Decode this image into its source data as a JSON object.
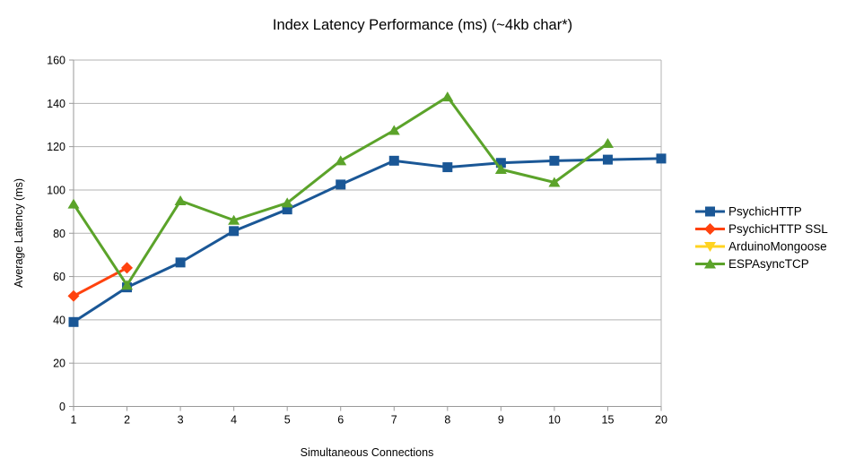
{
  "title": "Index Latency Performance (ms) (~4kb char*)",
  "chart_data": {
    "type": "line",
    "title": "Index Latency Performance (ms) (~4kb char*)",
    "xlabel": "Simultaneous Connections",
    "ylabel": "Average Latency (ms)",
    "categories": [
      "1",
      "2",
      "3",
      "4",
      "5",
      "6",
      "7",
      "8",
      "9",
      "10",
      "15",
      "20"
    ],
    "ylim": [
      0,
      160
    ],
    "ytick_step": 20,
    "grid": "horizontal",
    "legend_position": "right",
    "series": [
      {
        "name": "PsychicHTTP",
        "color": "#1a5796",
        "marker": "square",
        "values": [
          39,
          55,
          66.5,
          81,
          91,
          102.5,
          113.5,
          110.5,
          112.5,
          113.5,
          114,
          114.5
        ]
      },
      {
        "name": "PsychicHTTP SSL",
        "color": "#ff420e",
        "marker": "diamond",
        "values": [
          51,
          64,
          null,
          null,
          null,
          null,
          null,
          null,
          null,
          null,
          null,
          null
        ]
      },
      {
        "name": "ArduinoMongoose",
        "color": "#ffd320",
        "marker": "triangle-down",
        "values": [
          null,
          null,
          null,
          null,
          null,
          null,
          null,
          null,
          null,
          null,
          null,
          null
        ]
      },
      {
        "name": "ESPAsyncTCP",
        "color": "#5ba32a",
        "marker": "triangle-up",
        "values": [
          93.5,
          56,
          95,
          86,
          94,
          113.5,
          127.5,
          143,
          109.5,
          103.5,
          121.5,
          null
        ]
      }
    ],
    "styles": {
      "gridline_color": "#b3b3b3",
      "axis_color": "#999999",
      "background": "#ffffff",
      "text_color": "#000000"
    }
  }
}
